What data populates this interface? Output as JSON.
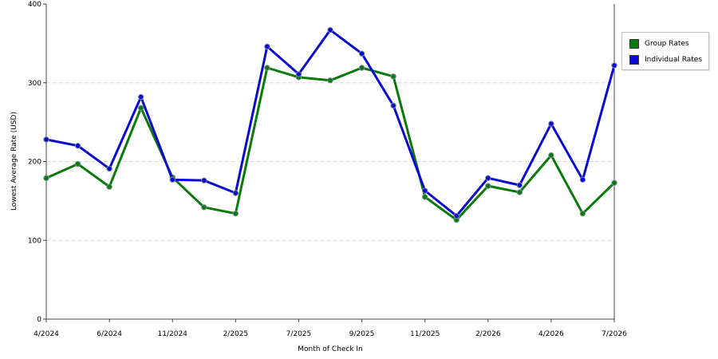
{
  "chart_data": {
    "type": "line",
    "xlabel": "Month of Check In",
    "ylabel": "Lowest Average Rate (USD)",
    "ylim": [
      0,
      400
    ],
    "yticks": [
      0,
      100,
      200,
      300,
      400
    ],
    "xticks": [
      "4/2024",
      "6/2024",
      "11/2024",
      "2/2025",
      "7/2025",
      "9/2025",
      "11/2025",
      "2/2026",
      "4/2026",
      "7/2026"
    ],
    "grid": true,
    "legend_position": "right",
    "series": [
      {
        "name": "Group Rates",
        "color": "#0a7a0a",
        "values": [
          179,
          197,
          168,
          268,
          180,
          142,
          134,
          319,
          307,
          303,
          319,
          308,
          155,
          126,
          169,
          161,
          208,
          134,
          173
        ]
      },
      {
        "name": "Individual Rates",
        "color": "#0a0ad0",
        "values": [
          228,
          220,
          191,
          282,
          177,
          176,
          160,
          346,
          311,
          367,
          337,
          271,
          163,
          131,
          179,
          170,
          248,
          177,
          322
        ]
      }
    ]
  }
}
